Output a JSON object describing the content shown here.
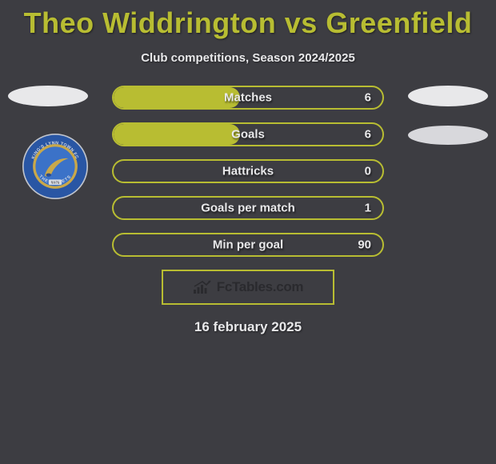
{
  "title": "Theo Widdrington vs Greenfield",
  "subtitle": "Club competitions, Season 2024/2025",
  "date": "16 february 2025",
  "logo_text": "FcTables.com",
  "colors": {
    "background": "#3d3d42",
    "accent": "#b8bd32",
    "text_light": "#e8e8ea",
    "badge_outer": "#2956a4",
    "badge_gold": "#c9a84a",
    "badge_inner": "#3b72c8"
  },
  "club_badge": {
    "name_top": "KING'S LYNN TOWN FC",
    "name_bottom": "THE LINNETS",
    "year": "1879"
  },
  "stats": [
    {
      "label": "Matches",
      "value": "6",
      "fill_pct": 47
    },
    {
      "label": "Goals",
      "value": "6",
      "fill_pct": 47
    },
    {
      "label": "Hattricks",
      "value": "0",
      "fill_pct": 0
    },
    {
      "label": "Goals per match",
      "value": "1",
      "fill_pct": 0
    },
    {
      "label": "Min per goal",
      "value": "90",
      "fill_pct": 0
    }
  ]
}
